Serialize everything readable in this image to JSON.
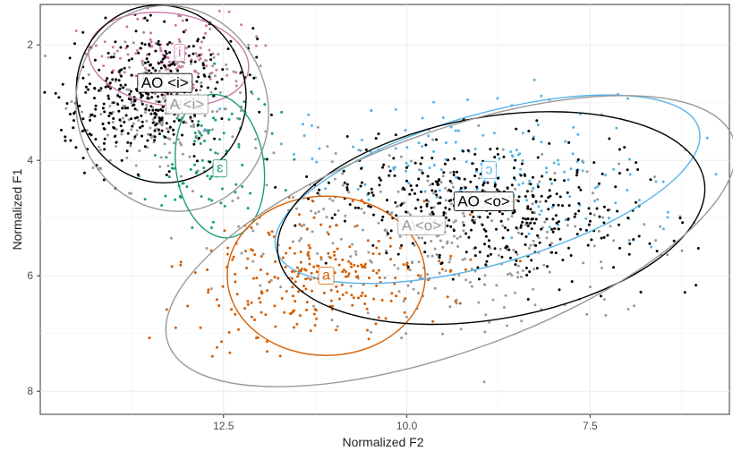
{
  "chart_data": {
    "type": "scatter",
    "xlabel": "Normalized F2",
    "ylabel": "Normalized F1",
    "x_reversed": true,
    "y_reversed": true,
    "xlim": [
      15.0,
      5.6
    ],
    "ylim": [
      1.3,
      8.4
    ],
    "x_ticks": [
      "12.5",
      "10.0",
      "7.5"
    ],
    "x_tick_values": [
      12.5,
      10.0,
      7.5
    ],
    "y_ticks": [
      "2",
      "4",
      "6",
      "8"
    ],
    "y_tick_values": [
      2,
      4,
      6,
      8
    ],
    "grid": true,
    "legend": "none",
    "series": [
      {
        "group": "i-short",
        "color": "#cc79a7",
        "center": [
          13.2,
          2.2
        ],
        "spread": [
          0.55,
          0.4
        ],
        "count": 130
      },
      {
        "group": "epsilon",
        "color": "#1b9e77",
        "center": [
          12.7,
          4.05
        ],
        "spread": [
          0.4,
          0.6
        ],
        "count": 90
      },
      {
        "group": "a",
        "color": "#d55e00",
        "center": [
          11.15,
          6.0
        ],
        "spread": [
          0.9,
          0.55
        ],
        "count": 260
      },
      {
        "group": "open-o",
        "color": "#56b4e9",
        "center": [
          8.9,
          4.1
        ],
        "spread": [
          1.4,
          0.5
        ],
        "count": 170
      },
      {
        "group": "AO-i",
        "color": "#000000",
        "center": [
          13.5,
          2.8
        ],
        "spread": [
          0.55,
          0.55
        ],
        "count": 380
      },
      {
        "group": "AO-o",
        "color": "#000000",
        "center": [
          8.9,
          4.85
        ],
        "spread": [
          1.1,
          0.6
        ],
        "count": 420
      },
      {
        "group": "A-i",
        "color": "#999999",
        "center": [
          13.3,
          3.1
        ],
        "spread": [
          0.6,
          0.6
        ],
        "count": 200
      },
      {
        "group": "A-o",
        "color": "#999999",
        "center": [
          9.6,
          5.3
        ],
        "spread": [
          1.5,
          0.75
        ],
        "count": 320
      }
    ],
    "ellipses": [
      {
        "label": "i",
        "color": "#cc79a7",
        "cx": 13.25,
        "cy": 2.25,
        "rx": 1.1,
        "ry": 0.8,
        "angle": 8,
        "label_at": [
          13.1,
          2.12
        ]
      },
      {
        "label": "AO <i>",
        "color": "#000000",
        "cx": 13.35,
        "cy": 2.85,
        "rx": 1.15,
        "ry": 1.55,
        "angle": -20,
        "label_at": [
          13.3,
          2.65
        ]
      },
      {
        "label": "A <i>",
        "color": "#999999",
        "cx": 13.2,
        "cy": 3.1,
        "rx": 1.3,
        "ry": 1.8,
        "angle": -20,
        "label_at": [
          13.0,
          3.02
        ]
      },
      {
        "label": "ɛ",
        "color": "#1b9e77",
        "cx": 12.55,
        "cy": 4.1,
        "rx": 0.6,
        "ry": 1.25,
        "angle": -8,
        "label_at": [
          12.55,
          4.12
        ]
      },
      {
        "label": "a",
        "color": "#d55e00",
        "cx": 11.1,
        "cy": 6.0,
        "rx": 1.35,
        "ry": 1.38,
        "angle": 0,
        "label_at": [
          11.1,
          5.98
        ]
      },
      {
        "label": "ɔ",
        "color": "#56b4e9",
        "cx": 8.9,
        "cy": 4.5,
        "rx": 3.0,
        "ry": 1.3,
        "angle": -16,
        "label_at": [
          8.88,
          4.15
        ]
      },
      {
        "label": "AO <o>",
        "color": "#000000",
        "cx": 8.85,
        "cy": 5.0,
        "rx": 2.95,
        "ry": 1.75,
        "angle": -10,
        "label_at": [
          8.95,
          4.7
        ]
      },
      {
        "label": "A <o>",
        "color": "#999999",
        "cx": 9.4,
        "cy": 5.4,
        "rx": 4.1,
        "ry": 1.9,
        "angle": -20,
        "label_at": [
          9.8,
          5.12
        ]
      }
    ]
  }
}
